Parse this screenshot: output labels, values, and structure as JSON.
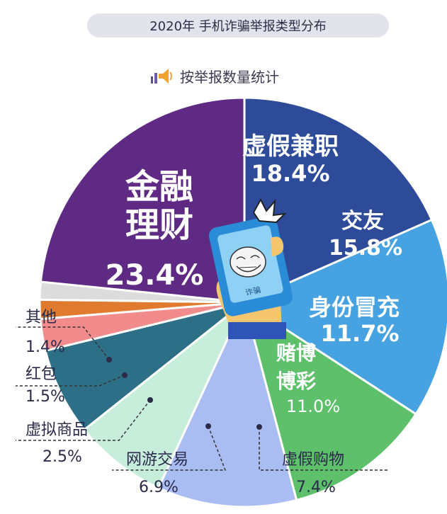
{
  "header": {
    "title": "2020年 手机诈骗举报类型分布",
    "subtitle": "按举报数量统计",
    "subtitle_icon": "megaphone-icon"
  },
  "phone": {
    "screen_text": "诈骗",
    "icon": "troll-face-icon"
  },
  "chart_data": {
    "type": "pie",
    "title": "2020年 手机诈骗举报类型分布",
    "subtitle": "按举报数量统计",
    "start_angle_deg": 0,
    "direction": "clockwise",
    "slices": [
      {
        "name": "虚假兼职",
        "label": "18.4%",
        "value": 18.4,
        "color": "#2e4b9a",
        "text_color": "#ffffff"
      },
      {
        "name": "交友",
        "label": "15.8%",
        "value": 15.8,
        "color": "#46a2e0",
        "text_color": "#ffffff"
      },
      {
        "name": "身份冒充",
        "label": "11.7%",
        "value": 11.7,
        "color": "#5ec06b",
        "text_color": "#ffffff"
      },
      {
        "name": "赌博博彩",
        "label": "11.0%",
        "value": 11.0,
        "color": "#a9bdf2",
        "text_color": "#ffffff"
      },
      {
        "name": "虚假购物",
        "label": "7.4%",
        "value": 7.4,
        "color": "#c6eedb",
        "text_color": "#2a2a4a"
      },
      {
        "name": "网游交易",
        "label": "6.9%",
        "value": 6.9,
        "color": "#2c6f86",
        "text_color": "#2a2a4a"
      },
      {
        "name": "虚拟商品",
        "label": "2.5%",
        "value": 2.5,
        "color": "#f28b8b",
        "text_color": "#2a2a4a"
      },
      {
        "name": "红包",
        "label": "1.5%",
        "value": 1.5,
        "color": "#e07a2e",
        "text_color": "#2a2a4a"
      },
      {
        "name": "其他",
        "label": "1.4%",
        "value": 1.4,
        "color": "#dcdcdc",
        "text_color": "#2a2a4a"
      },
      {
        "name": "金融理财",
        "label": "23.4%",
        "value": 23.4,
        "color": "#5e2a83",
        "text_color": "#ffffff"
      }
    ]
  }
}
